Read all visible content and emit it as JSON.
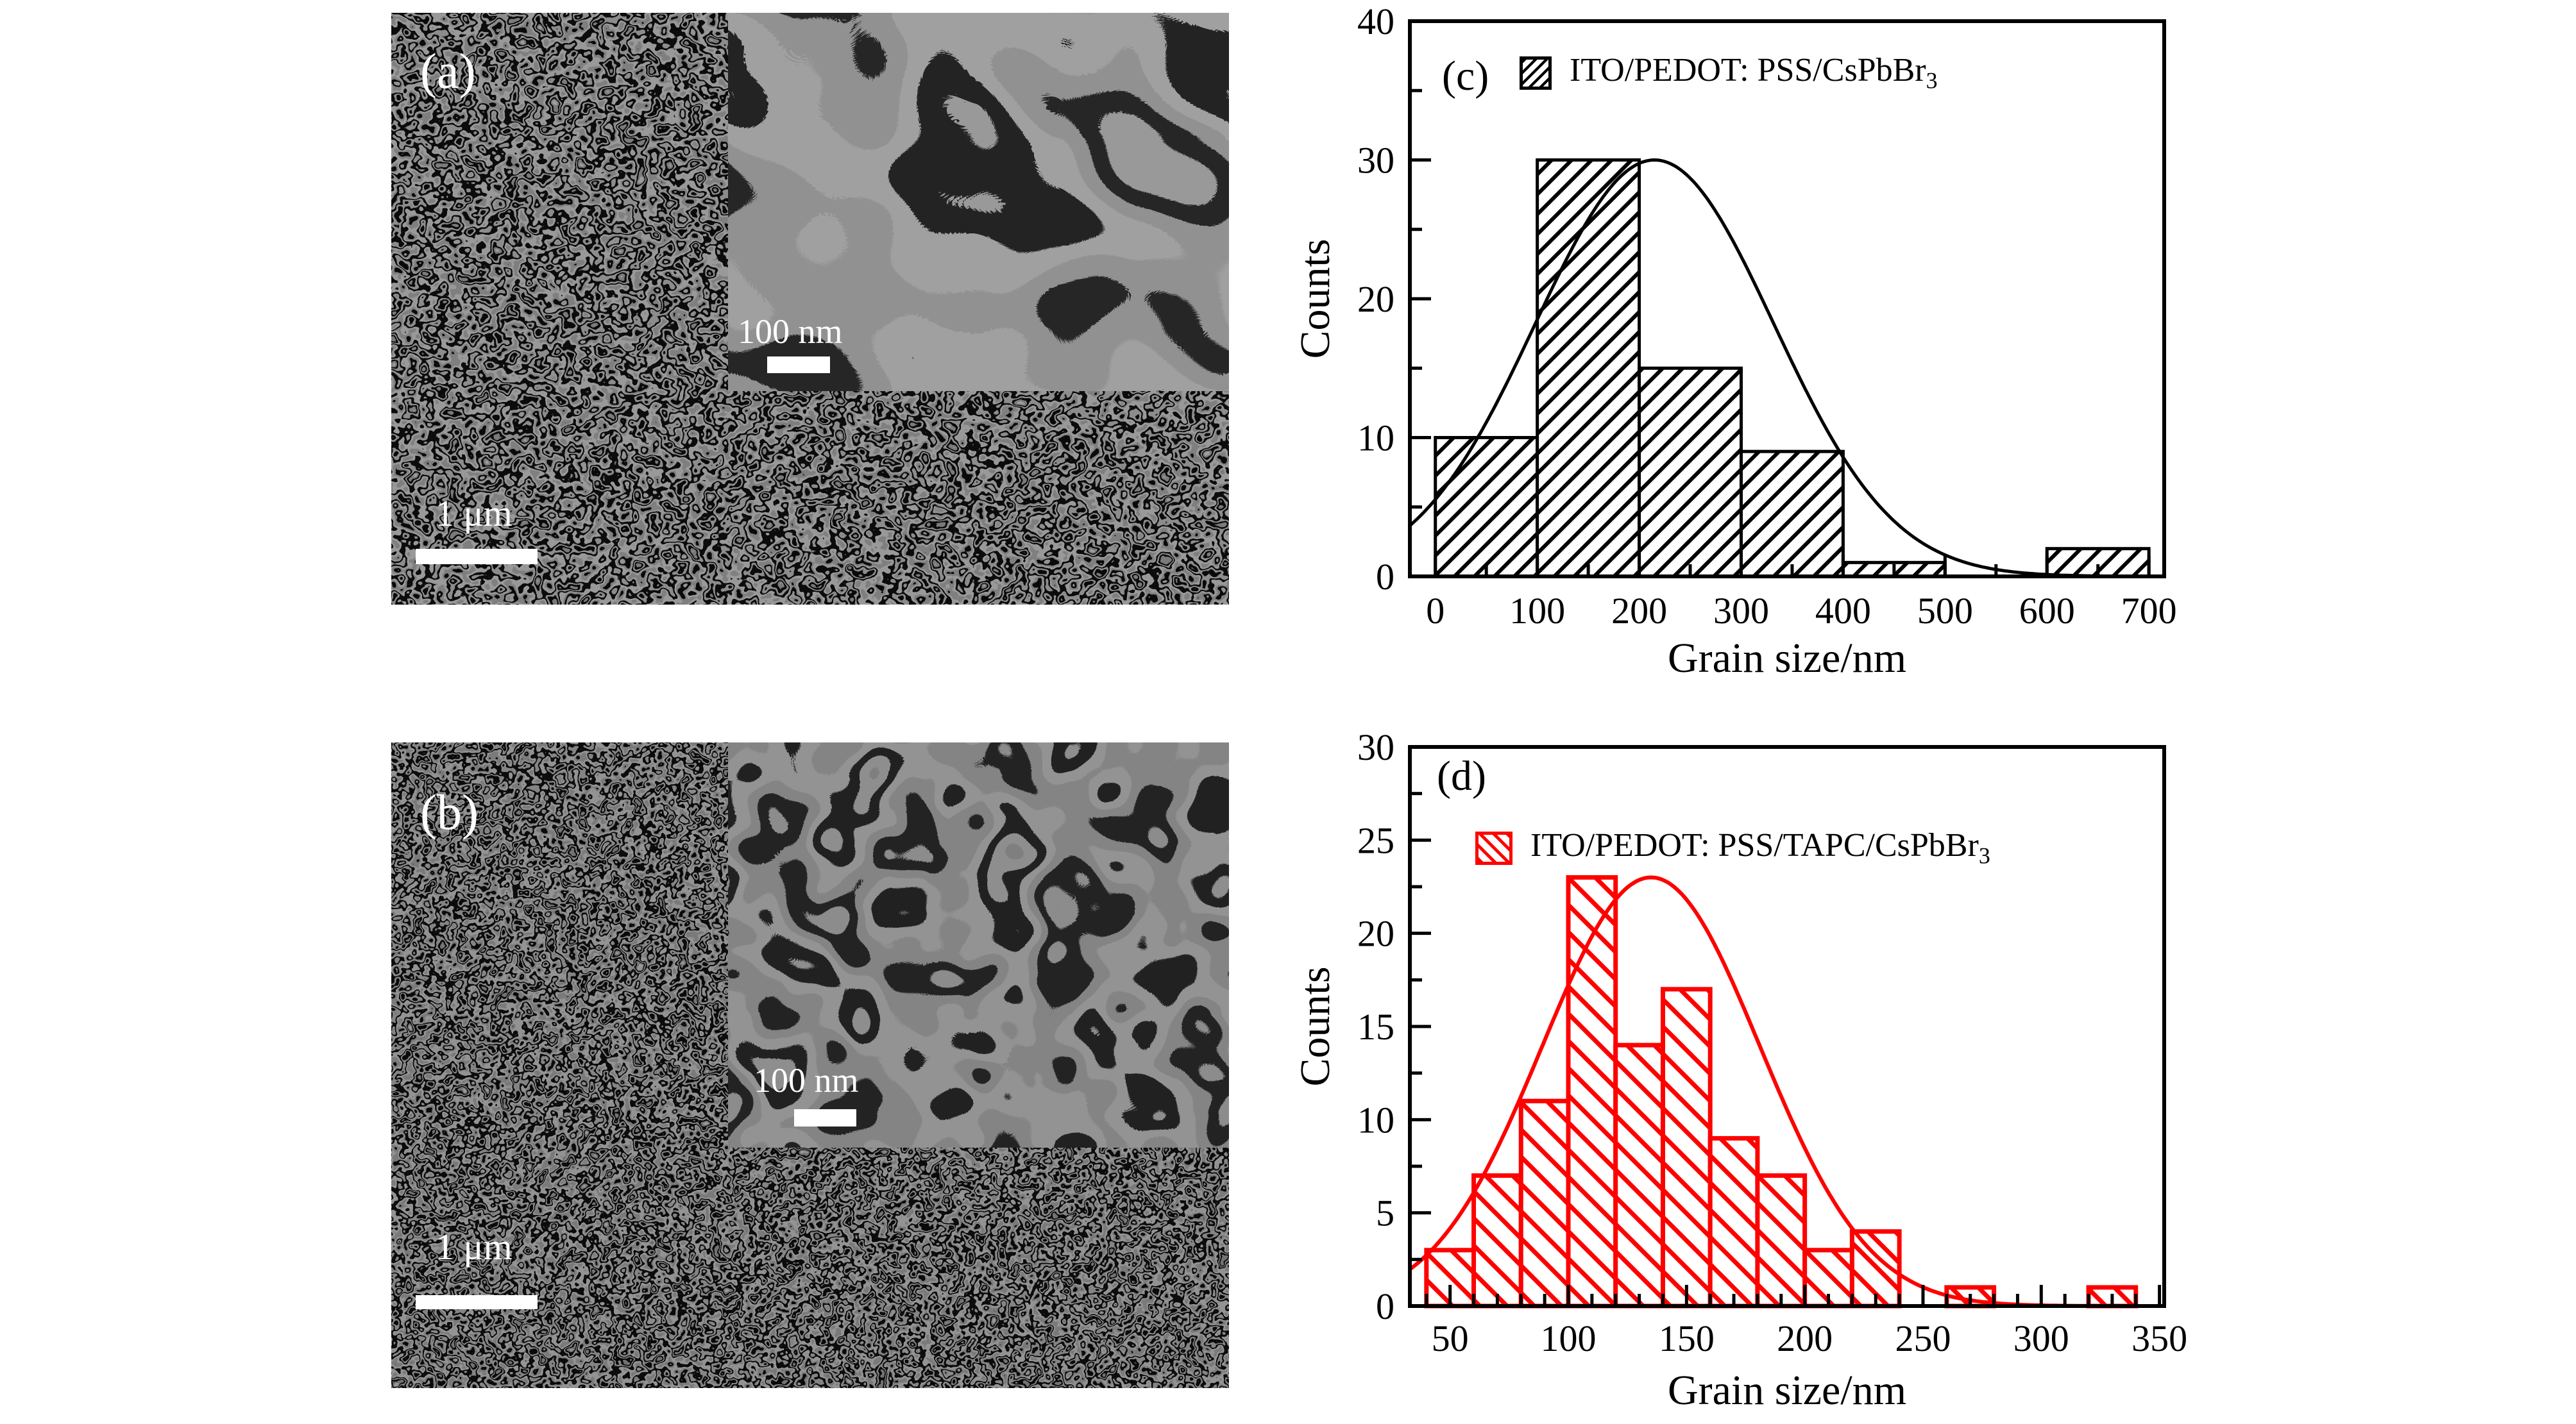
{
  "colors": {
    "axis": "#000000",
    "chart_c_accent": "#000000",
    "chart_d_accent": "#ff0000",
    "scalebar": "#ffffff",
    "background": "#ffffff"
  },
  "panels": {
    "a": {
      "label": "(a)",
      "scalebar_label": "1 μm",
      "inset_scalebar_label": "100 nm"
    },
    "b": {
      "label": "(b)",
      "scalebar_label": "1 μm",
      "inset_scalebar_label": "100 nm"
    },
    "c": {
      "label": "(c)"
    },
    "d": {
      "label": "(d)"
    }
  },
  "chart_data": [
    {
      "id": "c",
      "type": "bar",
      "panel_label": "(c)",
      "xlabel": "Grain size/nm",
      "ylabel": "Counts",
      "legend": {
        "label": "ITO/PEDOT: PSS/CsPbBr",
        "label_sub": "3"
      },
      "bin_edges": [
        0,
        100,
        200,
        300,
        400,
        500,
        600,
        700
      ],
      "values": [
        10,
        30,
        15,
        9,
        1,
        0,
        2
      ],
      "xlim": [
        -25,
        715
      ],
      "ylim": [
        0,
        40
      ],
      "x_major_ticks": [
        0,
        100,
        200,
        300,
        400,
        500,
        600,
        700
      ],
      "x_minor_step": 50,
      "y_major_ticks": [
        0,
        10,
        20,
        30,
        40
      ],
      "y_minor_step": 5,
      "fit_curve": {
        "type": "gaussian",
        "amplitude": 30,
        "mean": 215,
        "sigma": 117
      },
      "color": "#000000",
      "hatch": "/",
      "grid": false,
      "legend_position": "top"
    },
    {
      "id": "d",
      "type": "bar",
      "panel_label": "(d)",
      "xlabel": "Grain size/nm",
      "ylabel": "Counts",
      "legend": {
        "label": "ITO/PEDOT: PSS/TAPC/CsPbBr",
        "label_sub": "3"
      },
      "bin_edges": [
        40,
        60,
        80,
        100,
        120,
        140,
        160,
        180,
        200,
        220,
        240,
        260,
        280,
        300,
        320,
        340
      ],
      "values": [
        3,
        7,
        11,
        23,
        14,
        17,
        9,
        7,
        3,
        4,
        0,
        1,
        0,
        0,
        1
      ],
      "xlim": [
        33,
        352
      ],
      "ylim": [
        0,
        30
      ],
      "x_major_ticks": [
        50,
        100,
        150,
        200,
        250,
        300,
        350
      ],
      "x_minor_step": 10,
      "y_major_ticks": [
        0,
        5,
        10,
        15,
        20,
        25,
        30
      ],
      "y_minor_step": 2.5,
      "fit_curve": {
        "type": "gaussian",
        "amplitude": 23,
        "mean": 135,
        "sigma": 46
      },
      "color": "#ff0000",
      "hatch": "\\",
      "grid": false,
      "legend_position": "top"
    }
  ]
}
